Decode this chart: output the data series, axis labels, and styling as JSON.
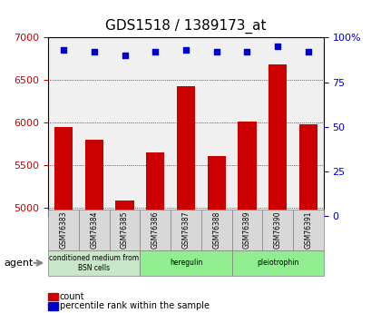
{
  "title": "GDS1518 / 1389173_at",
  "categories": [
    "GSM76383",
    "GSM76384",
    "GSM76385",
    "GSM76386",
    "GSM76387",
    "GSM76388",
    "GSM76389",
    "GSM76390",
    "GSM76391"
  ],
  "counts": [
    5950,
    5800,
    5080,
    5650,
    6430,
    5610,
    6010,
    6680,
    5980
  ],
  "percentiles": [
    93,
    92,
    90,
    92,
    93,
    92,
    92,
    95,
    92
  ],
  "ylim_left": [
    4900,
    7000
  ],
  "ylim_right": [
    0,
    100
  ],
  "yticks_left": [
    5000,
    5500,
    6000,
    6500,
    7000
  ],
  "yticks_right": [
    0,
    25,
    50,
    75,
    100
  ],
  "bar_color": "#cc0000",
  "dot_color": "#0000cc",
  "grid_color": "#000000",
  "background_color": "#f0f0f0",
  "agent_groups": [
    {
      "label": "conditioned medium from\nBSN cells",
      "start": 0,
      "end": 3,
      "color": "#c8e6c8"
    },
    {
      "label": "heregulin",
      "start": 3,
      "end": 6,
      "color": "#90ee90"
    },
    {
      "label": "pleiotrophin",
      "start": 6,
      "end": 9,
      "color": "#90ee90"
    }
  ],
  "legend_items": [
    {
      "color": "#cc0000",
      "label": "count"
    },
    {
      "color": "#0000cc",
      "label": "percentile rank within the sample"
    }
  ],
  "ylabel_left_color": "#cc0000",
  "ylabel_right_color": "#0000cc"
}
